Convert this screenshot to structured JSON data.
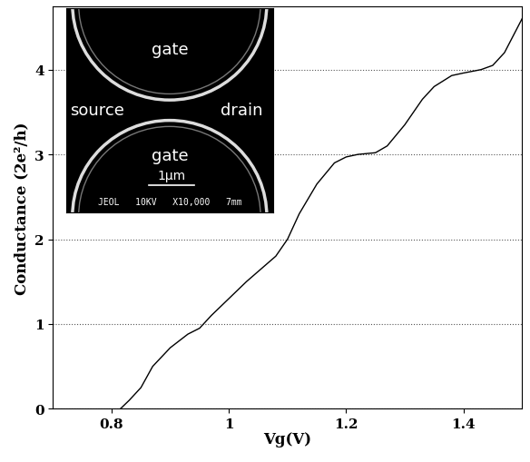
{
  "chart_data": {
    "type": "line",
    "x_label": "Vg(V)",
    "y_label": "Conductance (2e²/h)",
    "x": [
      0.815,
      0.83,
      0.85,
      0.87,
      0.9,
      0.93,
      0.95,
      0.97,
      1.0,
      1.03,
      1.05,
      1.08,
      1.1,
      1.12,
      1.15,
      1.18,
      1.2,
      1.22,
      1.25,
      1.27,
      1.3,
      1.33,
      1.35,
      1.38,
      1.4,
      1.43,
      1.45,
      1.47,
      1.5
    ],
    "values": [
      0.0,
      0.1,
      0.25,
      0.5,
      0.72,
      0.88,
      0.95,
      1.1,
      1.3,
      1.5,
      1.62,
      1.8,
      2.0,
      2.3,
      2.65,
      2.9,
      2.97,
      3.0,
      3.02,
      3.1,
      3.35,
      3.65,
      3.8,
      3.93,
      3.96,
      4.0,
      4.05,
      4.2,
      4.6
    ],
    "color": "#000000",
    "xlim": [
      0.7,
      1.5
    ],
    "ylim": [
      0,
      4.75
    ],
    "xticks": [
      0.8,
      1,
      1.2,
      1.4
    ],
    "yticks": [
      0,
      1,
      2,
      3,
      4
    ],
    "grid": true,
    "inset": {
      "labels": [
        "gate",
        "source",
        "drain",
        "gate"
      ],
      "scale_bar": "1μm",
      "footer": "JEOL   10KV   X10,000   7mm"
    }
  }
}
